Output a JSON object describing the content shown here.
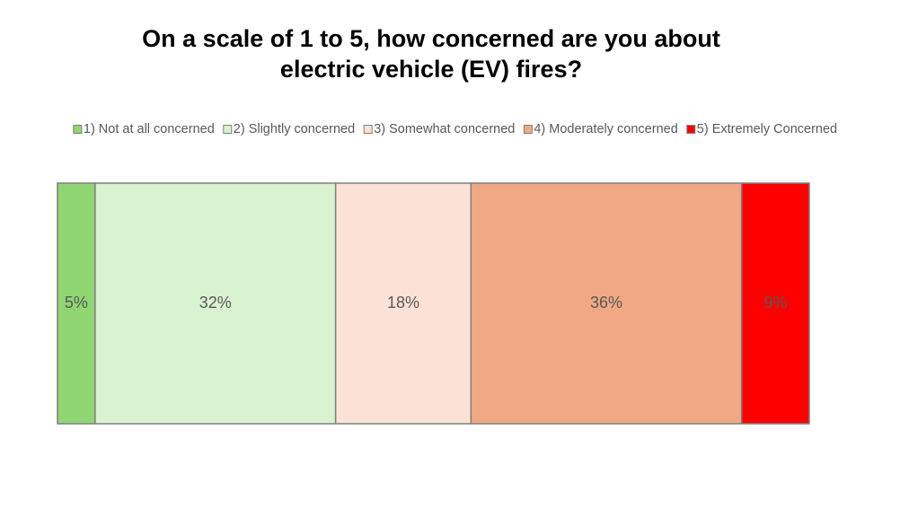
{
  "chart_data": {
    "type": "stacked-bar",
    "title": [
      "On a scale of 1 to 5, how concerned are you about",
      "electric vehicle (EV) fires?"
    ],
    "legend": "top",
    "series": [
      {
        "name": "1) Not at all concerned",
        "color": "#8fd672",
        "values": [
          5
        ],
        "value_labels": [
          "5%"
        ]
      },
      {
        "name": "2) Slightly concerned",
        "color": "#d9f2d0",
        "values": [
          32
        ],
        "value_labels": [
          "32%"
        ]
      },
      {
        "name": "3) Somewhat concerned",
        "color": "#fbe2d5",
        "values": [
          18
        ],
        "value_labels": [
          "18%"
        ]
      },
      {
        "name": "4) Moderately concerned",
        "color": "#f1a985",
        "values": [
          36
        ],
        "value_labels": [
          "36%"
        ]
      },
      {
        "name": "5) Extremely Concerned",
        "color": "#ff0000",
        "values": [
          9
        ],
        "value_labels": [
          "9%"
        ]
      }
    ]
  }
}
